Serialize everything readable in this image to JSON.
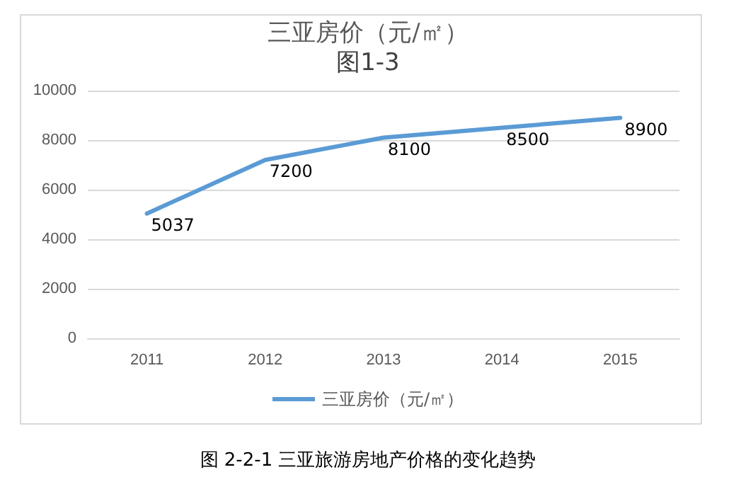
{
  "chart_data": {
    "type": "line",
    "title": "三亚房价（元/㎡）",
    "subtitle": "图1-3",
    "categories": [
      "2011",
      "2012",
      "2013",
      "2014",
      "2015"
    ],
    "series": [
      {
        "name": "三亚房价（元/㎡）",
        "color": "#5b9bd5",
        "values": [
          5037,
          7200,
          8100,
          8500,
          8900
        ]
      }
    ],
    "ylim": [
      0,
      10000
    ],
    "yticks": [
      0,
      2000,
      4000,
      6000,
      8000,
      10000
    ],
    "grid": "y",
    "legend": "bottom",
    "data_labels": true,
    "marker": "none",
    "line_style": "solid",
    "annotations": [
      "图 2-2-1 三亚旅游房地产价格的变化趋势"
    ]
  }
}
